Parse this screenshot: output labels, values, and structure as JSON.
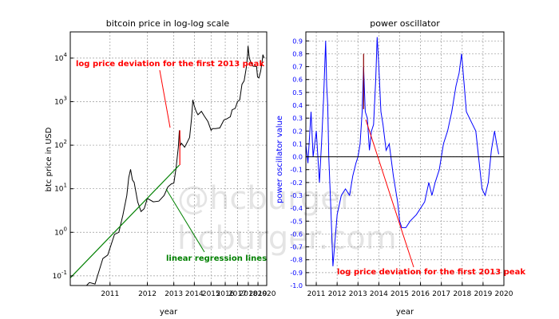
{
  "watermark": {
    "line1": "@hcburger",
    "line2": "hcburger.com"
  },
  "chart_data": [
    {
      "type": "line",
      "title": "bitcoin price in log-log scale",
      "xlabel": "year",
      "ylabel": "btc price in USD",
      "scale": {
        "x": "log (time since genesis)",
        "y": "log"
      },
      "grid": true,
      "xlim": [
        2010.3,
        2020.0
      ],
      "ylim": [
        0.06,
        40000
      ],
      "x_ticks": [
        2011,
        2012,
        2013,
        2014,
        2015,
        2016,
        2017,
        2018,
        2019,
        2020
      ],
      "y_ticks": [
        {
          "value": 0.1,
          "base": "10",
          "exp": "-1"
        },
        {
          "value": 1,
          "base": "10",
          "exp": "0"
        },
        {
          "value": 10,
          "base": "10",
          "exp": "1"
        },
        {
          "value": 100,
          "base": "10",
          "exp": "2"
        },
        {
          "value": 1000,
          "base": "10",
          "exp": "3"
        },
        {
          "value": 10000,
          "base": "10",
          "exp": "4"
        }
      ],
      "series": [
        {
          "color": "#000000",
          "x": [
            2010.55,
            2010.6,
            2010.7,
            2010.85,
            2010.95,
            2011.1,
            2011.2,
            2011.3,
            2011.4,
            2011.45,
            2011.5,
            2011.55,
            2011.6,
            2011.7,
            2011.8,
            2011.9,
            2012.0,
            2012.2,
            2012.4,
            2012.6,
            2012.75,
            2012.9,
            2013.0,
            2013.1,
            2013.2,
            2013.25,
            2013.3,
            2013.35,
            2013.5,
            2013.6,
            2013.75,
            2013.85,
            2013.92,
            2014.0,
            2014.1,
            2014.2,
            2014.4,
            2014.6,
            2014.8,
            2015.0,
            2015.1,
            2015.3,
            2015.6,
            2015.9,
            2016.1,
            2016.4,
            2016.55,
            2016.8,
            2017.0,
            2017.2,
            2017.4,
            2017.6,
            2017.8,
            2017.92,
            2017.97,
            2018.1,
            2018.3,
            2018.5,
            2018.7,
            2018.85,
            2018.95,
            2019.1,
            2019.3,
            2019.45,
            2019.55,
            2019.7
          ],
          "y": [
            0.06,
            0.07,
            0.065,
            0.25,
            0.3,
            0.9,
            1.0,
            2.5,
            7.0,
            18.0,
            28.0,
            16.0,
            14.0,
            5.0,
            3.0,
            3.5,
            6.0,
            5.0,
            5.2,
            7.0,
            11.0,
            13.0,
            13.5,
            30.0,
            90.0,
            220.0,
            100.0,
            110.0,
            90.0,
            110.0,
            150.0,
            400.0,
            1100.0,
            800.0,
            600.0,
            500.0,
            600.0,
            450.0,
            350.0,
            220.0,
            240.0,
            240.0,
            250.0,
            380.0,
            400.0,
            450.0,
            650.0,
            700.0,
            1000.0,
            1100.0,
            2500.0,
            3000.0,
            6000.0,
            11000.0,
            19000.0,
            10000.0,
            7500.0,
            6500.0,
            6500.0,
            6400.0,
            3700.0,
            3500.0,
            5000.0,
            8000.0,
            12000.0,
            10000.0
          ]
        },
        {
          "color": "#008000",
          "x": [
            2010.3,
            2013.25
          ],
          "y": [
            0.09,
            35.0
          ]
        },
        {
          "color": "#ff0000",
          "x": [
            2013.27,
            2013.27
          ],
          "y": [
            35.0,
            220.0
          ]
        }
      ],
      "annotations": [
        {
          "text": "log price deviation for the first 2013 peak",
          "color": "#ff0000"
        },
        {
          "text": "linear regression lines",
          "color": "#008000"
        }
      ]
    },
    {
      "type": "line",
      "title": "power oscillator",
      "xlabel": "year",
      "ylabel": "power oscillator value",
      "ylabel_color": "#0000ff",
      "grid": true,
      "xlim": [
        2010.5,
        2020.0
      ],
      "ylim": [
        -1.0,
        0.97
      ],
      "x_ticks": [
        2011,
        2012,
        2013,
        2014,
        2015,
        2016,
        2017,
        2018,
        2019,
        2020
      ],
      "y_ticks": [
        "-1.0",
        "-0.9",
        "-0.8",
        "-0.7",
        "-0.6",
        "-0.5",
        "-0.4",
        "-0.3",
        "-0.2",
        "-0.1",
        "0.0",
        "0.1",
        "0.2",
        "0.3",
        "0.4",
        "0.5",
        "0.6",
        "0.7",
        "0.8",
        "0.9"
      ],
      "series": [
        {
          "color": "#0000ff",
          "x": [
            2010.5,
            2010.6,
            2010.75,
            2010.85,
            2011.0,
            2011.15,
            2011.25,
            2011.35,
            2011.45,
            2011.5,
            2011.55,
            2011.6,
            2011.7,
            2011.8,
            2011.9,
            2012.0,
            2012.2,
            2012.4,
            2012.6,
            2012.75,
            2012.9,
            2013.0,
            2013.1,
            2013.2,
            2013.27,
            2013.35,
            2013.45,
            2013.55,
            2013.65,
            2013.75,
            2013.85,
            2013.92,
            2014.0,
            2014.1,
            2014.2,
            2014.35,
            2014.5,
            2014.7,
            2014.9,
            2015.0,
            2015.1,
            2015.3,
            2015.5,
            2015.8,
            2016.0,
            2016.2,
            2016.4,
            2016.55,
            2016.7,
            2016.9,
            2017.1,
            2017.3,
            2017.5,
            2017.7,
            2017.85,
            2017.97,
            2018.1,
            2018.2,
            2018.35,
            2018.5,
            2018.65,
            2018.85,
            2018.95,
            2019.1,
            2019.25,
            2019.4,
            2019.55,
            2019.65,
            2019.75
          ],
          "y": [
            0.1,
            -0.05,
            0.35,
            0.0,
            0.2,
            -0.2,
            0.1,
            0.45,
            0.9,
            0.55,
            0.4,
            0.0,
            -0.4,
            -0.85,
            -0.65,
            -0.45,
            -0.3,
            -0.25,
            -0.3,
            -0.15,
            -0.05,
            0.0,
            0.1,
            0.35,
            0.7,
            0.35,
            0.3,
            0.05,
            0.2,
            0.25,
            0.6,
            0.93,
            0.7,
            0.35,
            0.25,
            0.05,
            0.1,
            -0.15,
            -0.35,
            -0.5,
            -0.55,
            -0.55,
            -0.5,
            -0.45,
            -0.4,
            -0.35,
            -0.2,
            -0.3,
            -0.2,
            -0.1,
            0.1,
            0.2,
            0.35,
            0.55,
            0.65,
            0.8,
            0.55,
            0.35,
            0.3,
            0.25,
            0.2,
            -0.1,
            -0.25,
            -0.3,
            -0.2,
            0.05,
            0.2,
            0.1,
            0.02
          ]
        },
        {
          "color": "#000000",
          "x": [
            2010.5,
            2020.0
          ],
          "y": [
            0.0,
            0.0
          ]
        },
        {
          "color": "#8b0000",
          "x": [
            2013.27,
            2013.27
          ],
          "y": [
            0.37,
            0.8
          ]
        }
      ],
      "annotations": [
        {
          "text": "log price deviation for the first 2013 peak",
          "color": "#ff0000"
        }
      ]
    }
  ]
}
